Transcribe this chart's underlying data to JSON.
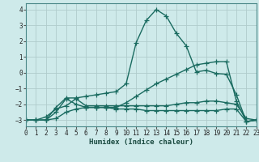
{
  "xlabel": "Humidex (Indice chaleur)",
  "bg_color": "#ceeaea",
  "grid_color": "#b0cccc",
  "line_color": "#1a6b60",
  "series": [
    {
      "x": [
        0,
        1,
        2,
        3,
        4,
        5,
        6,
        7,
        8,
        9,
        10,
        11,
        12,
        13,
        14,
        15,
        16,
        17,
        18,
        19,
        20,
        21,
        22,
        23
      ],
      "y": [
        -3,
        -3,
        -3,
        -2.2,
        -1.6,
        -1.6,
        -1.5,
        -1.4,
        -1.3,
        -1.2,
        -0.7,
        1.9,
        3.3,
        4.0,
        3.6,
        2.5,
        1.7,
        0.05,
        0.15,
        -0.05,
        -0.1,
        -1.4,
        -3.1,
        -3.0
      ]
    },
    {
      "x": [
        0,
        1,
        2,
        3,
        4,
        5,
        6,
        7,
        8,
        9,
        10,
        11,
        12,
        13,
        14,
        15,
        16,
        17,
        18,
        19,
        20,
        21,
        22,
        23
      ],
      "y": [
        -3,
        -3,
        -2.8,
        -2.3,
        -2.1,
        -1.65,
        -2.1,
        -2.1,
        -2.1,
        -2.1,
        -2.1,
        -2.1,
        -2.1,
        -2.1,
        -2.1,
        -2.0,
        -1.9,
        -1.9,
        -1.8,
        -1.8,
        -1.9,
        -2.0,
        -2.9,
        -3.0
      ]
    },
    {
      "x": [
        0,
        1,
        2,
        3,
        4,
        5,
        6,
        7,
        8,
        9,
        10,
        11,
        12,
        13,
        14,
        15,
        16,
        17,
        18,
        19,
        20,
        21,
        22,
        23
      ],
      "y": [
        -3,
        -3,
        -3,
        -2.5,
        -1.65,
        -2.0,
        -2.2,
        -2.2,
        -2.2,
        -2.3,
        -2.3,
        -2.3,
        -2.4,
        -2.4,
        -2.4,
        -2.4,
        -2.4,
        -2.4,
        -2.4,
        -2.4,
        -2.3,
        -2.3,
        -3.1,
        -3.0
      ]
    },
    {
      "x": [
        0,
        1,
        2,
        3,
        4,
        5,
        6,
        7,
        8,
        9,
        10,
        11,
        12,
        13,
        14,
        15,
        16,
        17,
        18,
        19,
        20,
        21,
        22,
        23
      ],
      "y": [
        -3,
        -3,
        -3,
        -2.9,
        -2.5,
        -2.3,
        -2.2,
        -2.2,
        -2.2,
        -2.2,
        -1.9,
        -1.5,
        -1.1,
        -0.7,
        -0.4,
        -0.1,
        0.2,
        0.5,
        0.6,
        0.7,
        0.7,
        -1.8,
        -3.1,
        -3.0
      ]
    }
  ],
  "xlim": [
    0,
    23
  ],
  "ylim": [
    -3.4,
    4.4
  ],
  "yticks": [
    -3,
    -2,
    -1,
    0,
    1,
    2,
    3,
    4
  ],
  "xticks": [
    0,
    1,
    2,
    3,
    4,
    5,
    6,
    7,
    8,
    9,
    10,
    11,
    12,
    13,
    14,
    15,
    16,
    17,
    18,
    19,
    20,
    21,
    22,
    23
  ],
  "marker": "+",
  "markersize": 4,
  "linewidth": 1.0,
  "tick_fontsize": 5.5,
  "xlabel_fontsize": 6.5
}
